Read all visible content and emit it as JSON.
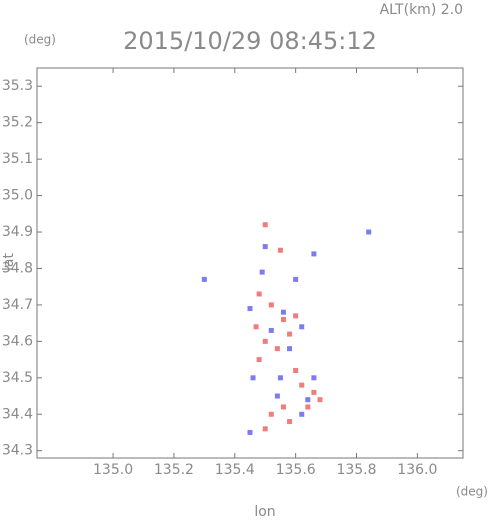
{
  "chart_data": {
    "type": "scatter",
    "title": "2015/10/29 08:45:12",
    "subtitle": "ALT(km) 2.0",
    "x_label": "lon",
    "y_label": "lat",
    "x_unit": "(deg)",
    "y_unit": "(deg)",
    "xlim": [
      134.75,
      136.15
    ],
    "ylim": [
      34.28,
      35.35
    ],
    "xticks": [
      {
        "value": 135.0,
        "label": "135.0"
      },
      135.2,
      135.4,
      135.6,
      135.8,
      {
        "value": 136.0,
        "label": "136.0"
      }
    ],
    "yticks": [
      34.3,
      34.4,
      34.5,
      34.6,
      34.7,
      34.8,
      34.9,
      {
        "value": 35.0,
        "label": "35.0"
      },
      35.1,
      35.2,
      35.3
    ],
    "series": [
      {
        "color": "#f07c7c",
        "x": [
          135.5,
          135.55,
          135.48,
          135.52,
          135.56,
          135.6,
          135.5,
          135.54,
          135.48,
          135.6,
          135.62,
          135.66,
          135.68,
          135.64,
          135.56,
          135.52,
          135.5,
          135.58,
          135.47,
          135.58
        ],
        "values": [
          34.92,
          34.85,
          34.73,
          34.7,
          34.66,
          34.67,
          34.6,
          34.58,
          34.55,
          34.52,
          34.48,
          34.46,
          34.44,
          34.42,
          34.42,
          34.4,
          34.36,
          34.38,
          34.64,
          34.62
        ]
      },
      {
        "color": "#7c7cf0",
        "x": [
          135.3,
          135.66,
          135.5,
          135.6,
          135.84,
          135.45,
          135.56,
          135.62,
          135.52,
          135.58,
          135.46,
          135.55,
          135.64,
          135.62,
          135.54,
          135.45,
          135.66,
          135.49
        ],
        "values": [
          34.77,
          34.84,
          34.86,
          34.77,
          34.9,
          34.69,
          34.68,
          34.64,
          34.63,
          34.58,
          34.5,
          34.5,
          34.44,
          34.4,
          34.45,
          34.35,
          34.5,
          34.79
        ]
      }
    ]
  }
}
